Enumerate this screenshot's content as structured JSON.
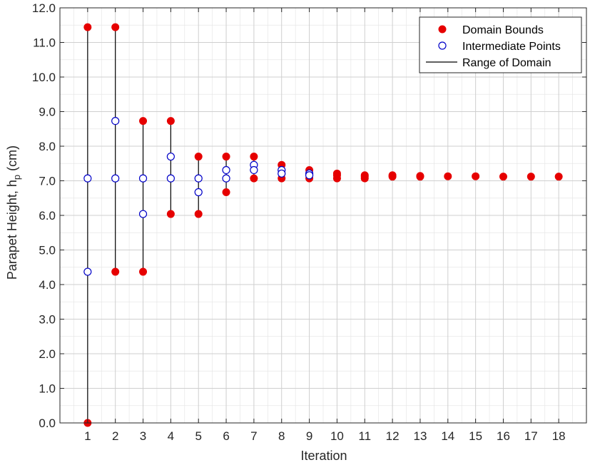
{
  "chart_data": {
    "type": "scatter",
    "xlabel": "Iteration",
    "ylabel_main": "Parapet Height, h",
    "ylabel_sub": "p",
    "ylabel_unit": " (cm)",
    "xlim": [
      0,
      19
    ],
    "ylim": [
      0,
      12
    ],
    "x_ticks": [
      1,
      2,
      3,
      4,
      5,
      6,
      7,
      8,
      9,
      10,
      11,
      12,
      13,
      14,
      15,
      16,
      17,
      18
    ],
    "y_ticks": [
      "0.0",
      "1.0",
      "2.0",
      "3.0",
      "4.0",
      "5.0",
      "6.0",
      "7.0",
      "8.0",
      "9.0",
      "10.0",
      "11.0",
      "12.0"
    ],
    "grid": true,
    "legend_position": "top-right",
    "legend": [
      {
        "label": "Domain Bounds",
        "marker": "filled-circle"
      },
      {
        "label": "Intermediate Points",
        "marker": "open-circle"
      },
      {
        "label": "Range of Domain",
        "marker": "line"
      }
    ],
    "colors": {
      "bounds": "#e60000",
      "intermediate": "#0000c8",
      "range": "#000000",
      "axis": "#262626"
    },
    "series": [
      {
        "name": "Domain Bounds",
        "points": [
          [
            1,
            11.44
          ],
          [
            1,
            0.0
          ],
          [
            2,
            11.44
          ],
          [
            2,
            4.37
          ],
          [
            3,
            8.73
          ],
          [
            3,
            4.37
          ],
          [
            4,
            8.73
          ],
          [
            4,
            6.04
          ],
          [
            5,
            7.7
          ],
          [
            5,
            6.04
          ],
          [
            6,
            7.7
          ],
          [
            6,
            6.67
          ],
          [
            7,
            7.7
          ],
          [
            7,
            7.07
          ],
          [
            8,
            7.46
          ],
          [
            8,
            7.07
          ],
          [
            9,
            7.31
          ],
          [
            9,
            7.07
          ],
          [
            10,
            7.21
          ],
          [
            10,
            7.16
          ],
          [
            10,
            7.07
          ],
          [
            11,
            7.16
          ],
          [
            11,
            7.07
          ],
          [
            11,
            7.12
          ],
          [
            12,
            7.16
          ],
          [
            12,
            7.12
          ],
          [
            13,
            7.14
          ],
          [
            13,
            7.12
          ],
          [
            14,
            7.13
          ],
          [
            15,
            7.13
          ],
          [
            16,
            7.12
          ],
          [
            17,
            7.12
          ],
          [
            18,
            7.12
          ]
        ]
      },
      {
        "name": "Intermediate Points",
        "points": [
          [
            1,
            7.07
          ],
          [
            1,
            4.37
          ],
          [
            2,
            8.73
          ],
          [
            2,
            7.07
          ],
          [
            3,
            7.07
          ],
          [
            3,
            6.04
          ],
          [
            4,
            7.7
          ],
          [
            4,
            7.07
          ],
          [
            5,
            7.07
          ],
          [
            5,
            6.67
          ],
          [
            6,
            7.31
          ],
          [
            6,
            7.07
          ],
          [
            7,
            7.46
          ],
          [
            7,
            7.31
          ],
          [
            8,
            7.31
          ],
          [
            8,
            7.21
          ],
          [
            9,
            7.21
          ],
          [
            9,
            7.16
          ]
        ]
      },
      {
        "name": "Range of Domain",
        "ranges": [
          [
            1,
            0.0,
            11.44
          ],
          [
            2,
            4.37,
            11.44
          ],
          [
            3,
            4.37,
            8.73
          ],
          [
            4,
            6.04,
            8.73
          ],
          [
            5,
            6.04,
            7.7
          ],
          [
            6,
            6.67,
            7.7
          ],
          [
            7,
            7.07,
            7.7
          ],
          [
            8,
            7.07,
            7.46
          ],
          [
            9,
            7.07,
            7.31
          ],
          [
            10,
            7.07,
            7.21
          ],
          [
            11,
            7.07,
            7.16
          ],
          [
            12,
            7.12,
            7.16
          ],
          [
            13,
            7.12,
            7.14
          ],
          [
            14,
            7.12,
            7.13
          ],
          [
            15,
            7.12,
            7.13
          ],
          [
            16,
            7.12,
            7.12
          ],
          [
            17,
            7.12,
            7.12
          ],
          [
            18,
            7.12,
            7.12
          ]
        ]
      }
    ]
  }
}
